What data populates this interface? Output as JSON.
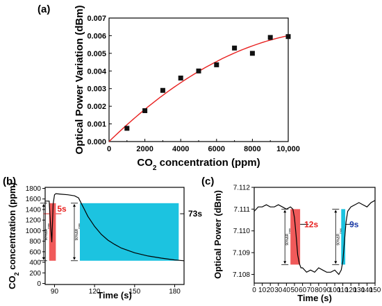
{
  "chart_data": [
    {
      "panel": "(a)",
      "type": "scatter",
      "xlabel": "CO",
      "xlabel_sub": "2",
      "xlabel_rest": " concentration (ppm)",
      "ylabel": "Optical Power Variation (dBm)",
      "xlim": [
        0,
        10000
      ],
      "ylim": [
        0,
        0.007
      ],
      "xticks": [
        "0",
        "2000",
        "4000",
        "6000",
        "8000",
        "10,000"
      ],
      "yticks": [
        "0.000",
        "0.001",
        "0.002",
        "0.003",
        "0.004",
        "0.005",
        "0.006",
        "0.007"
      ],
      "x": [
        1000,
        2000,
        3000,
        4000,
        5000,
        6000,
        7000,
        8000,
        9000,
        10000
      ],
      "y": [
        0.00075,
        0.00175,
        0.0029,
        0.0036,
        0.004,
        0.00435,
        0.0053,
        0.005,
        0.0059,
        0.00595
      ],
      "fit": {
        "x0": 0,
        "y0": 0,
        "coeffs": [
          0,
          9.9e-07,
          -3.9e-11
        ]
      },
      "colors": {
        "marker": "#111111",
        "fit": "#e8201f"
      }
    },
    {
      "panel": "(b)",
      "type": "line",
      "xlabel": "Time (s)",
      "ylabel": "CO",
      "ylabel_sub": "2",
      "ylabel_rest": " concentration (ppm)",
      "xlim": [
        83,
        187
      ],
      "ylim": [
        -20,
        1820
      ],
      "xticks": [
        "90",
        "120",
        "150",
        "180"
      ],
      "yticks": [
        "0",
        "200",
        "400",
        "600",
        "800",
        "1000",
        "1200",
        "1400",
        "1600",
        "1800"
      ],
      "x": [
        83,
        86,
        87,
        88,
        89,
        90,
        91,
        95,
        100,
        105,
        108,
        110,
        112,
        115,
        120,
        125,
        130,
        135,
        140,
        150,
        160,
        170,
        180,
        187
      ],
      "y": [
        1560,
        1560,
        1120,
        780,
        1500,
        1680,
        1700,
        1690,
        1680,
        1660,
        1620,
        1520,
        1420,
        1270,
        1080,
        930,
        820,
        740,
        670,
        580,
        520,
        480,
        445,
        430
      ],
      "response_box": {
        "x": [
          86,
          91
        ],
        "y": [
          430,
          1520
        ],
        "color": "#f05a5a",
        "label": "5s"
      },
      "recovery_box": {
        "x": [
          109,
          183
        ],
        "y": [
          430,
          1520
        ],
        "color": "#1cc3e0",
        "label": "73s"
      },
      "inner_label": "90%ΔR",
      "inner_label_sub": "max"
    },
    {
      "panel": "(c)",
      "type": "line",
      "xlabel": "Time (s)",
      "ylabel": "Optical Power (dBm)",
      "xlim": [
        0,
        150
      ],
      "ylim": [
        7.1076,
        7.112
      ],
      "xticks": [
        "0",
        "10",
        "20",
        "30",
        "40",
        "50",
        "60",
        "70",
        "80",
        "90",
        "100",
        "110",
        "120",
        "130",
        "140",
        "150"
      ],
      "yticks": [
        "7.108",
        "7.109",
        "7.110",
        "7.111",
        "7.112"
      ],
      "x": [
        0,
        5,
        10,
        15,
        20,
        25,
        30,
        35,
        40,
        45,
        48,
        50,
        52,
        54,
        56,
        58,
        60,
        65,
        70,
        75,
        80,
        85,
        90,
        95,
        100,
        105,
        108,
        110,
        112,
        114,
        116,
        118,
        120,
        125,
        130,
        135,
        140,
        145,
        150
      ],
      "y": [
        7.1109,
        7.1111,
        7.1111,
        7.1112,
        7.1111,
        7.1111,
        7.1112,
        7.1111,
        7.111,
        7.1111,
        7.111,
        7.1106,
        7.1098,
        7.1089,
        7.1085,
        7.1083,
        7.1083,
        7.1081,
        7.1082,
        7.1081,
        7.1083,
        7.1082,
        7.1081,
        7.1081,
        7.1082,
        7.108,
        7.1082,
        7.1086,
        7.1095,
        7.1104,
        7.1109,
        7.111,
        7.1111,
        7.1112,
        7.1113,
        7.1112,
        7.1111,
        7.1113,
        7.1114
      ],
      "response_box": {
        "x": [
          45,
          57
        ],
        "y": [
          7.10845,
          7.111
        ],
        "color": "#f05a5a",
        "label": "12s"
      },
      "recovery_box": {
        "x": [
          108,
          113
        ],
        "y": [
          7.10845,
          7.111
        ],
        "color": "#1cc3e0",
        "label": "9s"
      },
      "inner_label": "90%ΔR",
      "inner_label_sub": "max"
    }
  ]
}
